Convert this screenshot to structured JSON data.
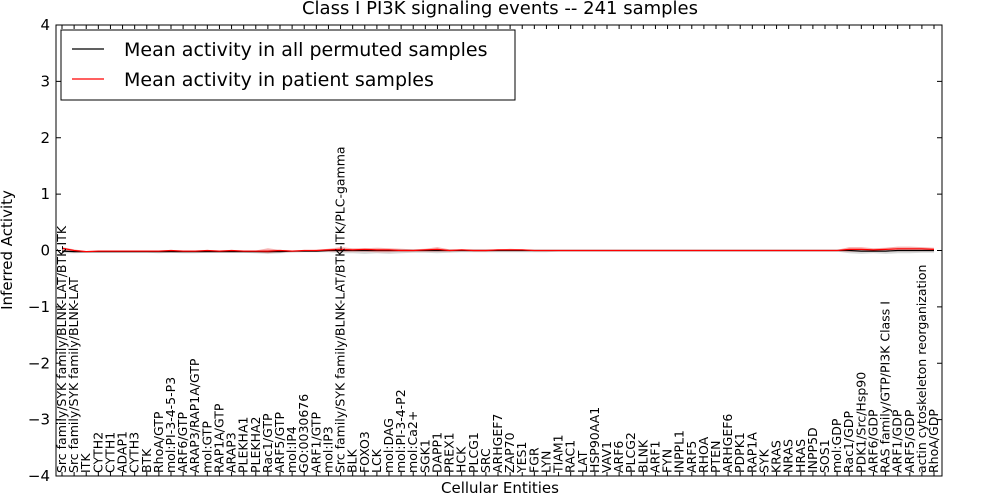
{
  "chart_data": {
    "type": "line",
    "title": "Class I PI3K signaling events -- 241 samples",
    "xlabel": "Cellular Entities",
    "ylabel": "Inferred Activity",
    "ylim": [
      -4,
      4
    ],
    "yticks": [
      -4,
      -3,
      -2,
      -1,
      0,
      1,
      2,
      3,
      4
    ],
    "ytick_labels": [
      "−4",
      "−3",
      "−2",
      "−1",
      "0",
      "1",
      "2",
      "3",
      "4"
    ],
    "legend": {
      "placement": "top-left",
      "entries": [
        {
          "label": "Mean activity in all permuted samples",
          "color": "#000000"
        },
        {
          "label": "Mean activity in patient samples",
          "color": "#ff0000"
        }
      ]
    },
    "colors": {
      "permuted": "#000000",
      "patient": "#ff0000",
      "patient_band": "#f08080",
      "permuted_band": "#c8c8c8"
    },
    "categories": [
      "Src family/SYK family/BLNK-LAT/BTK-ITK",
      "Src family/SYK family/BLNK-LAT",
      "ITK",
      "CYTH2",
      "CYTH1",
      "ADAP1",
      "CYTH3",
      "BTK",
      "RhoA/GTP",
      "mol:PI-3-4-5-P3",
      "ARF6/GTP",
      "ARAP3/RAP1A/GTP",
      "mol:GTP",
      "RAP1A/GTP",
      "ARAP3",
      "PLEKHA1",
      "PLEKHA2",
      "Rac1/GTP",
      "ARF5/GTP",
      "mol:IP4",
      "GO:0030676",
      "ARF1/GTP",
      "mol:IP3",
      "Src family/SYK family/BLNK-LAT/BTK-ITK/PLC-gamma",
      "BLK",
      "FOXO3",
      "LCK",
      "mol:DAG",
      "mol:PI-3-4-P2",
      "mol:Ca2+",
      "SGK1",
      "DAPP1",
      "PREX1",
      "HCK",
      "PLCG1",
      "SRC",
      "ARHGEF7",
      "ZAP70",
      "YES1",
      "FGR",
      "LYN",
      "TIAM1",
      "RAC1",
      "LAT",
      "HSP90AA1",
      "VAV1",
      "ARF6",
      "PLCG2",
      "BLNK",
      "ARF1",
      "FYN",
      "INPPL1",
      "ARF5",
      "RHOA",
      "PTEN",
      "ARHGEF6",
      "PDPK1",
      "RAP1A",
      "SYK",
      "KRAS",
      "NRAS",
      "HRAS",
      "INPP5D",
      "SOS1",
      "mol:GDP",
      "Rac1/GDP",
      "PDK1/Src/Hsp90",
      "ARF6/GDP",
      "RAS family/GTP/PI3K Class I",
      "ARF1/GDP",
      "ARF5/GDP",
      "actin cytoskeleton reorganization",
      "RhoA/GDP"
    ],
    "series": [
      {
        "name": "Mean activity in patient samples",
        "values": [
          0.04,
          0.0,
          -0.02,
          -0.01,
          -0.01,
          -0.01,
          -0.01,
          -0.01,
          -0.01,
          0.0,
          -0.01,
          -0.01,
          0.0,
          -0.01,
          0.0,
          -0.01,
          -0.01,
          -0.01,
          0.0,
          -0.01,
          0.0,
          0.0,
          0.01,
          0.02,
          0.01,
          0.02,
          0.01,
          0.01,
          0.0,
          0.0,
          0.01,
          0.02,
          0.0,
          0.01,
          0.0,
          0.0,
          0.01,
          0.01,
          0.01,
          0.0,
          0.0,
          0.0,
          0.0,
          0.0,
          0.0,
          0.0,
          0.0,
          0.0,
          0.0,
          0.0,
          0.0,
          0.0,
          0.0,
          0.0,
          0.0,
          0.0,
          0.0,
          0.0,
          0.0,
          0.0,
          0.0,
          0.0,
          0.0,
          0.0,
          0.0,
          0.02,
          0.02,
          0.01,
          0.02,
          0.03,
          0.03,
          0.03,
          0.02
        ],
        "upper": [
          0.06,
          0.02,
          -0.01,
          -0.01,
          -0.01,
          -0.01,
          -0.01,
          -0.01,
          0.0,
          0.0,
          -0.01,
          0.0,
          0.0,
          0.0,
          0.0,
          -0.01,
          0.0,
          0.04,
          0.01,
          0.0,
          0.0,
          0.01,
          0.03,
          0.06,
          0.04,
          0.04,
          0.05,
          0.04,
          0.03,
          0.02,
          0.03,
          0.06,
          0.02,
          0.02,
          0.02,
          0.02,
          0.02,
          0.03,
          0.02,
          0.01,
          0.01,
          0.01,
          0.01,
          0.01,
          0.01,
          0.01,
          0.01,
          0.01,
          0.01,
          0.01,
          0.01,
          0.01,
          0.01,
          0.01,
          0.01,
          0.01,
          0.01,
          0.01,
          0.01,
          0.01,
          0.01,
          0.01,
          0.01,
          0.01,
          0.01,
          0.06,
          0.06,
          0.04,
          0.05,
          0.07,
          0.07,
          0.06,
          0.05
        ],
        "lower": [
          0.0,
          -0.03,
          -0.03,
          -0.02,
          -0.02,
          -0.02,
          -0.02,
          -0.02,
          -0.02,
          -0.01,
          -0.02,
          -0.02,
          -0.01,
          -0.02,
          -0.01,
          -0.02,
          -0.03,
          -0.05,
          -0.02,
          -0.02,
          -0.01,
          -0.02,
          -0.02,
          -0.02,
          -0.02,
          -0.02,
          -0.03,
          -0.03,
          -0.02,
          -0.02,
          -0.02,
          -0.02,
          -0.02,
          -0.01,
          -0.02,
          -0.02,
          -0.01,
          -0.01,
          -0.01,
          -0.01,
          -0.01,
          -0.01,
          -0.01,
          -0.01,
          -0.01,
          -0.01,
          -0.01,
          -0.01,
          -0.01,
          -0.01,
          -0.01,
          -0.01,
          -0.01,
          -0.01,
          -0.01,
          -0.01,
          -0.01,
          -0.01,
          -0.01,
          -0.01,
          -0.01,
          -0.01,
          -0.01,
          -0.01,
          -0.01,
          -0.02,
          -0.02,
          -0.02,
          -0.01,
          -0.01,
          -0.01,
          -0.01,
          -0.01
        ]
      },
      {
        "name": "Mean activity in all permuted samples",
        "values": [
          -0.01,
          -0.02,
          -0.02,
          -0.02,
          -0.02,
          -0.02,
          -0.02,
          -0.02,
          -0.02,
          -0.02,
          -0.02,
          -0.02,
          -0.02,
          -0.02,
          -0.02,
          -0.02,
          -0.02,
          -0.02,
          -0.02,
          -0.01,
          -0.01,
          -0.01,
          0.0,
          0.0,
          0.0,
          0.0,
          0.0,
          0.0,
          0.0,
          0.0,
          0.0,
          0.0,
          0.0,
          0.0,
          0.0,
          0.0,
          0.0,
          0.0,
          0.0,
          0.0,
          0.0,
          0.0,
          0.0,
          0.0,
          0.0,
          0.0,
          0.0,
          0.0,
          0.0,
          0.0,
          0.0,
          0.0,
          0.0,
          0.0,
          0.0,
          0.0,
          0.0,
          0.0,
          0.0,
          0.0,
          0.0,
          0.0,
          0.0,
          0.0,
          0.0,
          0.0,
          -0.01,
          -0.01,
          -0.01,
          0.0,
          0.0,
          0.0,
          0.0
        ],
        "upper": [
          0.01,
          0.0,
          -0.01,
          -0.01,
          -0.01,
          -0.01,
          -0.01,
          -0.01,
          -0.01,
          -0.01,
          -0.01,
          -0.01,
          -0.01,
          -0.01,
          -0.01,
          -0.01,
          -0.01,
          -0.01,
          -0.01,
          0.0,
          0.0,
          0.0,
          0.01,
          0.01,
          0.01,
          0.01,
          0.01,
          0.01,
          0.01,
          0.01,
          0.01,
          0.01,
          0.01,
          0.01,
          0.01,
          0.01,
          0.01,
          0.01,
          0.01,
          0.01,
          0.01,
          0.01,
          0.01,
          0.01,
          0.01,
          0.01,
          0.01,
          0.01,
          0.01,
          0.01,
          0.01,
          0.01,
          0.01,
          0.01,
          0.01,
          0.01,
          0.01,
          0.01,
          0.01,
          0.01,
          0.01,
          0.01,
          0.01,
          0.01,
          0.01,
          0.01,
          0.0,
          0.0,
          0.0,
          0.01,
          0.01,
          0.01,
          0.01
        ],
        "lower": [
          -0.05,
          -0.05,
          -0.04,
          -0.04,
          -0.04,
          -0.04,
          -0.04,
          -0.04,
          -0.05,
          -0.04,
          -0.05,
          -0.05,
          -0.04,
          -0.04,
          -0.04,
          -0.04,
          -0.05,
          -0.06,
          -0.05,
          -0.04,
          -0.03,
          -0.03,
          -0.03,
          -0.05,
          -0.05,
          -0.06,
          -0.05,
          -0.06,
          -0.05,
          -0.04,
          -0.04,
          -0.05,
          -0.04,
          -0.03,
          -0.03,
          -0.03,
          -0.03,
          -0.03,
          -0.03,
          -0.03,
          -0.03,
          -0.02,
          -0.02,
          -0.02,
          -0.02,
          -0.02,
          -0.02,
          -0.02,
          -0.02,
          -0.02,
          -0.02,
          -0.02,
          -0.02,
          -0.02,
          -0.02,
          -0.02,
          -0.02,
          -0.02,
          -0.02,
          -0.02,
          -0.02,
          -0.02,
          -0.02,
          -0.02,
          -0.02,
          -0.05,
          -0.06,
          -0.05,
          -0.06,
          -0.05,
          -0.05,
          -0.04,
          -0.04
        ]
      }
    ]
  }
}
